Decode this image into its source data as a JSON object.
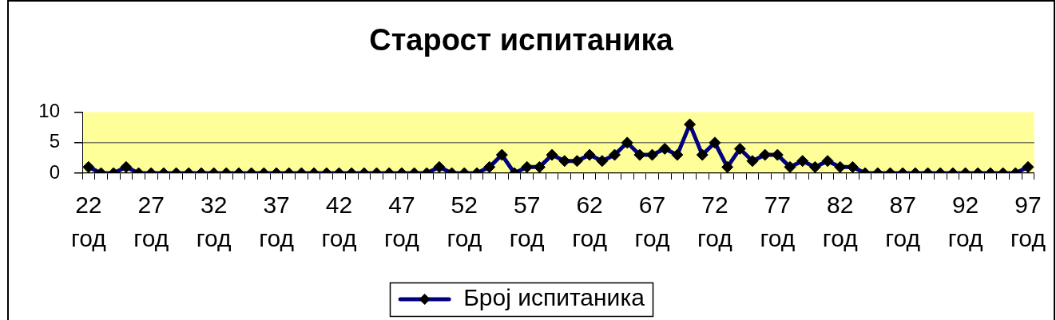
{
  "chart_data": {
    "type": "line",
    "title": "Старост испитаника",
    "categories": [
      "22 год",
      null,
      null,
      null,
      null,
      "27 год",
      null,
      null,
      null,
      null,
      "32 год",
      null,
      null,
      null,
      null,
      "37 год",
      null,
      null,
      null,
      null,
      "42 год",
      null,
      null,
      null,
      null,
      "47 год",
      null,
      null,
      null,
      null,
      "52 год",
      null,
      null,
      null,
      null,
      "57 год",
      null,
      null,
      null,
      null,
      "62 год",
      null,
      null,
      null,
      null,
      "67 год",
      null,
      null,
      null,
      null,
      "72 год",
      null,
      null,
      null,
      null,
      "77 год",
      null,
      null,
      null,
      null,
      "82 год",
      null,
      null,
      null,
      null,
      "87 год",
      null,
      null,
      null,
      null,
      "92 год",
      null,
      null,
      null,
      null,
      "97 год"
    ],
    "series": [
      {
        "name": "Број испитаника",
        "color": "#000080",
        "values": [
          1,
          0,
          0,
          1,
          0,
          0,
          0,
          0,
          0,
          0,
          0,
          0,
          0,
          0,
          0,
          0,
          0,
          0,
          0,
          0,
          0,
          0,
          0,
          0,
          0,
          0,
          0,
          0,
          1,
          0,
          0,
          0,
          1,
          3,
          0,
          1,
          1,
          3,
          2,
          2,
          3,
          2,
          3,
          5,
          3,
          3,
          4,
          3,
          8,
          3,
          5,
          1,
          4,
          2,
          3,
          3,
          1,
          2,
          1,
          2,
          1,
          1,
          0,
          0,
          0,
          0,
          0,
          0,
          0,
          0,
          0,
          0,
          0,
          0,
          0,
          1
        ]
      }
    ],
    "ylim": [
      0,
      10
    ],
    "yticks": [
      0,
      5,
      10
    ],
    "grid": "y",
    "legend": "bottom",
    "marker": "diamond",
    "line_style": "solid"
  }
}
